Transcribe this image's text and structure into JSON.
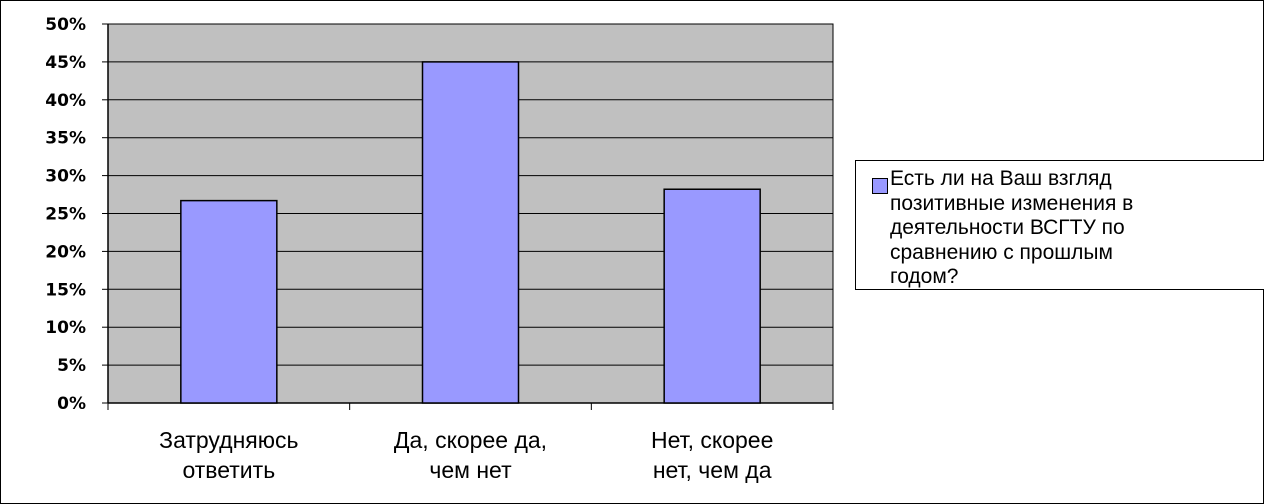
{
  "chart_data": {
    "type": "bar",
    "categories": [
      "Затрудняюсь ответить",
      "Да, скорее да, чем нет",
      "Нет, скорее нет, чем да"
    ],
    "category_lines": [
      [
        "Затрудняюсь",
        "ответить"
      ],
      [
        "Да, скорее да,",
        "чем нет"
      ],
      [
        "Нет, скорее",
        "нет, чем да"
      ]
    ],
    "series": [
      {
        "name": " Есть ли на Ваш взгляд позитивные изменения в деятельности ВСГТУ по сравнению с прошлым годом?",
        "values": [
          0.267,
          0.45,
          0.282
        ]
      }
    ],
    "ylim": [
      0,
      0.5
    ],
    "yticks": [
      "0%",
      "5%",
      "10%",
      "15%",
      "20%",
      "25%",
      "30%",
      "35%",
      "40%",
      "45%",
      "50%"
    ],
    "grid": true,
    "legend_position": "right",
    "colors": {
      "bar": "#9999ff",
      "plot_bg": "#c0c0c0",
      "gridline": "#000000"
    }
  },
  "legend": {
    "text": " Есть ли на Ваш взгляд\nпозитивные изменения в\nдеятельности ВСГТУ по\nсравнению с прошлым\nгодом?"
  }
}
